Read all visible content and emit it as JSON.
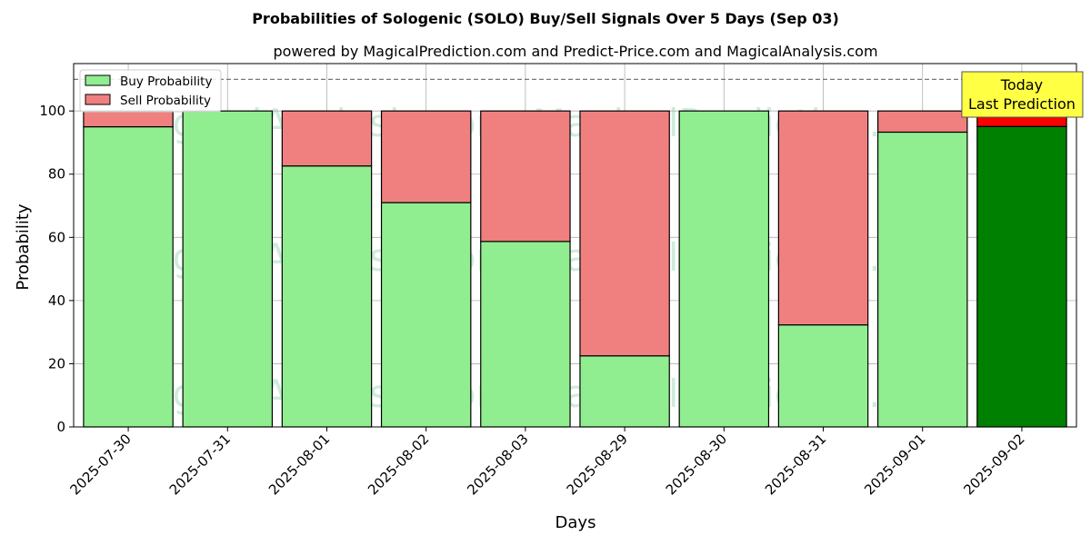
{
  "chart_data": {
    "type": "bar",
    "stacked": true,
    "title": "Probabilities of Sologenic (SOLO) Buy/Sell Signals Over 5 Days (Sep 03)",
    "subtitle": "powered by MagicalPrediction.com and Predict-Price.com and MagicalAnalysis.com",
    "xlabel": "Days",
    "ylabel": "Probability",
    "ylim": [
      0,
      115
    ],
    "yticks": [
      0,
      20,
      40,
      60,
      80,
      100
    ],
    "grid": true,
    "legend_position": "top-left",
    "reference_line": 110,
    "categories": [
      "2025-07-30",
      "2025-07-31",
      "2025-08-01",
      "2025-08-02",
      "2025-08-03",
      "2025-08-29",
      "2025-08-30",
      "2025-08-31",
      "2025-09-01",
      "2025-09-02"
    ],
    "series": [
      {
        "name": "Buy Probability",
        "values": [
          95.0,
          100.0,
          82.6,
          71.0,
          58.7,
          22.5,
          100.0,
          32.3,
          93.3,
          95.1
        ]
      },
      {
        "name": "Sell Probability",
        "values": [
          5.0,
          0.0,
          17.4,
          29.0,
          41.3,
          77.5,
          0.0,
          67.7,
          6.7,
          4.9
        ]
      }
    ],
    "colors": {
      "buy": "#90ee90",
      "sell": "#f08080",
      "today_buy": "#008000",
      "today_sell": "#ff0000",
      "annotation_bg": "#ffff44"
    },
    "annotation": {
      "line1": "Today",
      "line2": "Last Prediction"
    },
    "watermarks": [
      "MagicalAnalysis.com",
      "MagicalPrediction.com"
    ]
  }
}
